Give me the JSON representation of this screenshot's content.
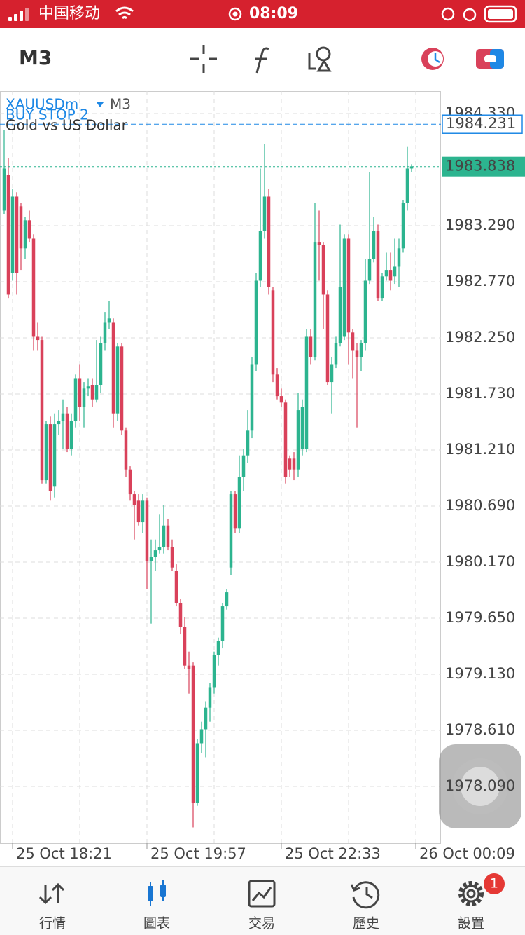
{
  "status_bar": {
    "carrier": "中国移动",
    "time": "08:09"
  },
  "toolbar": {
    "timeframe": "M3"
  },
  "chart_data": {
    "type": "candlestick",
    "symbol": "XAUUSDm",
    "timeframe": "M3",
    "order_label": "BUY STOP 2",
    "description": "Gold vs US Dollar",
    "order_price": 1984.231,
    "current_price": 1983.838,
    "open": [
      1983.43,
      1983.76,
      1982.85,
      1983.56,
      1983.47,
      1983.08,
      1983.34,
      1983.17,
      1982.26,
      1982.23,
      1980.93,
      1981.45,
      1980.87,
      1981.45,
      1981.48,
      1981.55,
      1981.22,
      1981.48,
      1981.87,
      1981.61,
      1981.78,
      1981.81,
      1981.68,
      1981.81,
      1982.2,
      1982.39,
      1982.39,
      1981.55,
      1982.17,
      1981.39,
      1981.03,
      1980.8,
      1980.74,
      1980.54,
      1980.74,
      1980.18,
      1980.22,
      1980.28,
      1980.31,
      1980.51,
      1980.31,
      1980.09,
      1979.79,
      1979.57,
      1979.21,
      1979.21,
      1977.94,
      1978.49,
      1978.62,
      1978.82,
      1979.01,
      1979.31,
      1979.44,
      1979.76,
      1980.12,
      1980.8,
      1980.48,
      1980.96,
      1981.16,
      1981.39,
      1982.0,
      1982.78,
      1983.24,
      1983.56,
      1982.69,
      1981.91,
      1981.71,
      1981.65,
      1981.13,
      1981.13,
      1981.03,
      1981.22,
      1981.22,
      1982.26,
      1982.07,
      1983.14,
      1983.11,
      1982.65,
      1981.84,
      1982.0,
      1982.2,
      1982.26,
      1983.17,
      1982.3,
      1982.13,
      1982.07,
      1982.2,
      1982.78,
      1982.98,
      1983.24,
      1982.62,
      1982.82,
      1982.88,
      1982.82,
      1982.91,
      1983.08,
      1983.5,
      1983.82
    ],
    "high": [
      1984.18,
      1983.92,
      1983.63,
      1983.6,
      1983.5,
      1983.37,
      1983.43,
      1983.21,
      1982.39,
      1982.26,
      1981.48,
      1981.52,
      1981.55,
      1981.58,
      1981.68,
      1981.61,
      1981.55,
      1981.91,
      1982.0,
      1981.84,
      1981.87,
      1981.87,
      1982.23,
      1982.26,
      1982.49,
      1982.59,
      1982.43,
      1982.2,
      1982.2,
      1981.42,
      1981.06,
      1980.83,
      1980.8,
      1980.8,
      1980.77,
      1980.38,
      1980.38,
      1980.61,
      1980.7,
      1980.57,
      1980.38,
      1980.15,
      1979.83,
      1979.66,
      1979.34,
      1979.24,
      1978.53,
      1978.69,
      1978.88,
      1979.05,
      1979.34,
      1979.47,
      1979.79,
      1979.92,
      1980.83,
      1980.83,
      1981.16,
      1981.22,
      1981.58,
      1982.07,
      1982.85,
      1983.82,
      1984.05,
      1983.63,
      1982.72,
      1981.97,
      1981.78,
      1981.68,
      1981.16,
      1981.19,
      1981.74,
      1981.68,
      1982.33,
      1982.33,
      1983.5,
      1983.43,
      1983.14,
      1982.69,
      1982.07,
      1982.26,
      1983.3,
      1983.21,
      1983.21,
      1982.33,
      1982.2,
      1982.23,
      1982.98,
      1983.79,
      1983.37,
      1983.3,
      1982.85,
      1983.04,
      1983.04,
      1983.17,
      1983.17,
      1983.53,
      1984.02,
      1983.86
    ],
    "low": [
      1983.4,
      1982.62,
      1982.78,
      1982.65,
      1982.88,
      1982.98,
      1983.14,
      1982.13,
      1982.13,
      1980.9,
      1980.9,
      1980.74,
      1980.77,
      1981.35,
      1981.22,
      1981.19,
      1981.16,
      1981.42,
      1981.48,
      1981.42,
      1981.71,
      1981.61,
      1981.65,
      1981.74,
      1982.13,
      1982.33,
      1981.42,
      1981.48,
      1981.35,
      1980.96,
      1980.74,
      1980.38,
      1980.51,
      1980.44,
      1979.92,
      1979.6,
      1980.09,
      1980.25,
      1980.25,
      1980.28,
      1980.09,
      1979.76,
      1979.5,
      1979.18,
      1978.95,
      1977.71,
      1977.91,
      1978.4,
      1978.36,
      1978.69,
      1978.95,
      1979.21,
      1979.37,
      1979.73,
      1980.05,
      1980.44,
      1980.44,
      1980.83,
      1981.09,
      1981.32,
      1981.94,
      1982.72,
      1983.17,
      1982.65,
      1981.84,
      1981.68,
      1981.61,
      1980.9,
      1980.96,
      1980.93,
      1980.96,
      1981.16,
      1981.19,
      1982.0,
      1982.04,
      1982.78,
      1982.33,
      1981.81,
      1981.55,
      1981.97,
      1982.17,
      1982.23,
      1982.0,
      1981.87,
      1981.42,
      1981.94,
      1982.13,
      1982.75,
      1982.95,
      1982.59,
      1982.59,
      1982.78,
      1982.69,
      1982.75,
      1982.72,
      1983.04,
      1983.43,
      1983.79
    ],
    "close": [
      1983.82,
      1982.65,
      1983.56,
      1982.85,
      1983.08,
      1983.34,
      1983.17,
      1982.26,
      1982.23,
      1980.93,
      1981.45,
      1980.83,
      1981.45,
      1981.48,
      1981.55,
      1981.22,
      1981.48,
      1981.87,
      1981.61,
      1981.78,
      1981.8,
      1981.68,
      1981.81,
      1982.2,
      1982.39,
      1982.43,
      1981.55,
      1982.17,
      1981.39,
      1981.03,
      1980.8,
      1980.7,
      1980.54,
      1980.74,
      1980.18,
      1980.22,
      1980.28,
      1980.31,
      1980.51,
      1980.31,
      1980.12,
      1979.79,
      1979.57,
      1979.21,
      1979.18,
      1977.94,
      1978.49,
      1978.62,
      1978.82,
      1979.01,
      1979.31,
      1979.44,
      1979.76,
      1979.89,
      1980.8,
      1980.48,
      1980.96,
      1981.16,
      1981.39,
      1982.0,
      1982.78,
      1983.24,
      1983.56,
      1982.72,
      1981.91,
      1981.71,
      1981.65,
      1980.96,
      1981.03,
      1981.03,
      1981.58,
      1981.61,
      1982.26,
      1982.07,
      1983.14,
      1983.11,
      1982.65,
      1981.84,
      1982.0,
      1982.2,
      1982.72,
      1983.17,
      1982.3,
      1982.13,
      1982.07,
      1982.2,
      1982.78,
      1982.98,
      1983.24,
      1982.62,
      1982.82,
      1982.88,
      1982.78,
      1982.91,
      1983.08,
      1983.5,
      1983.82,
      1983.84
    ],
    "up_color": "#2cb48f",
    "down_color": "#d9415a",
    "order_color": "#1e88e5",
    "grid": true,
    "xlim": [
      -1,
      104
    ],
    "xticks": [
      {
        "value": 2,
        "label": "25 Oct 18:21"
      },
      {
        "value": 34,
        "label": "25 Oct 19:57"
      },
      {
        "value": 66,
        "label": "25 Oct 22:33"
      },
      {
        "value": 98,
        "label": "26 Oct 00:09"
      }
    ],
    "ylim": [
      1977.5635,
      1984.538
    ],
    "yticks": [
      {
        "value": 1984.33,
        "label": "1984.330"
      },
      {
        "value": 1983.29,
        "label": "1983.290"
      },
      {
        "value": 1982.77,
        "label": "1982.770"
      },
      {
        "value": 1982.25,
        "label": "1982.250"
      },
      {
        "value": 1981.73,
        "label": "1981.730"
      },
      {
        "value": 1981.21,
        "label": "1981.210"
      },
      {
        "value": 1980.69,
        "label": "1980.690"
      },
      {
        "value": 1980.17,
        "label": "1980.170"
      },
      {
        "value": 1979.65,
        "label": "1979.650"
      },
      {
        "value": 1979.13,
        "label": "1979.130"
      },
      {
        "value": 1978.61,
        "label": "1978.610"
      },
      {
        "value": 1978.09,
        "label": "1978.090"
      }
    ]
  },
  "tab_bar": {
    "tabs": [
      "行情",
      "圖表",
      "交易",
      "歷史",
      "設置"
    ],
    "badge": 1
  }
}
